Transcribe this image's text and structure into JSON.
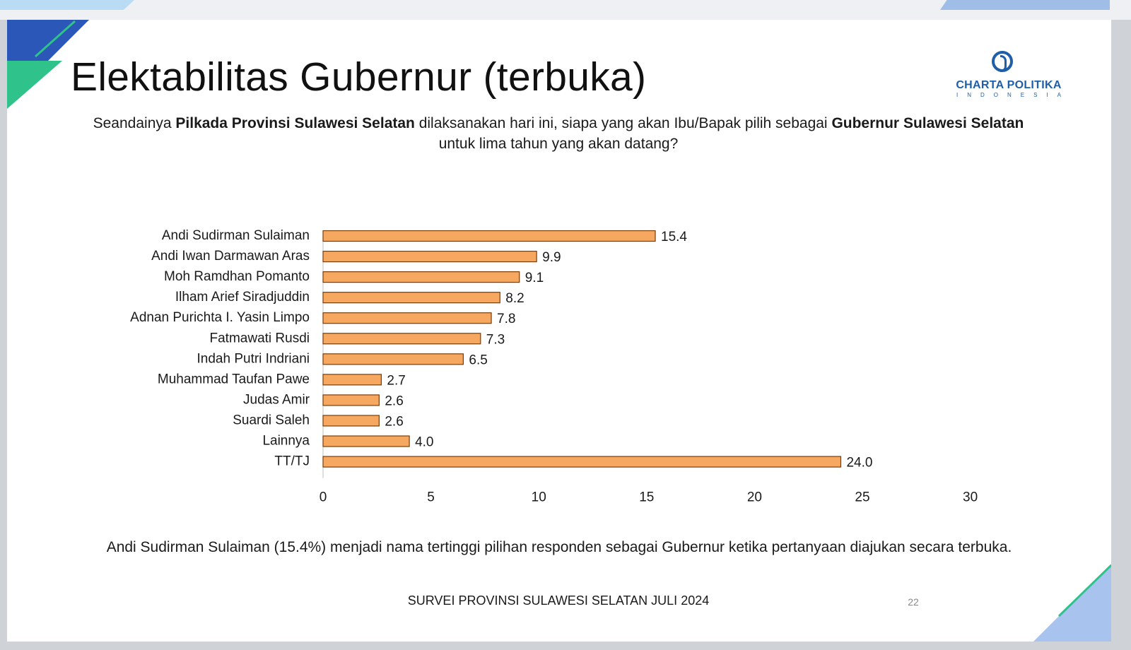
{
  "slide": {
    "title": "Elektabilitas Gubernur (terbuka)",
    "question_parts": [
      {
        "text": "Seandainya ",
        "bold": false
      },
      {
        "text": "Pilkada Provinsi Sulawesi Selatan",
        "bold": true
      },
      {
        "text": " dilaksanakan hari ini, siapa yang akan Ibu/Bapak pilih sebagai ",
        "bold": false
      },
      {
        "text": "Gubernur Sulawesi Selatan",
        "bold": true
      },
      {
        "text": " untuk lima tahun yang akan datang?",
        "bold": false
      }
    ],
    "summary": "Andi Sudirman Sulaiman (15.4%) menjadi nama tertinggi pilihan responden sebagai Gubernur ketika pertanyaan diajukan secara terbuka.",
    "footer": "SURVEI PROVINSI SULAWESI SELATAN JULI 2024",
    "page_number": "22"
  },
  "logo": {
    "name": "CHARTA POLITIKA",
    "sub": "INDONESIA",
    "icon": "charta-politika-logo-icon",
    "color": "#1f5ea8"
  },
  "colors": {
    "bar_fill": "#f6a860",
    "bar_edge": "#7a3d08",
    "accent_green": "#2fc28a",
    "accent_blue": "#2b57b8",
    "accent_lightblue": "#a9c3ef"
  },
  "chart_data": {
    "type": "bar",
    "orientation": "horizontal",
    "categories": [
      "Andi Sudirman Sulaiman",
      "Andi Iwan Darmawan Aras",
      "Moh Ramdhan Pomanto",
      "Ilham Arief Siradjuddin",
      "Adnan Purichta I. Yasin Limpo",
      "Fatmawati Rusdi",
      "Indah Putri Indriani",
      "Muhammad Taufan Pawe",
      "Judas Amir",
      "Suardi Saleh",
      "Lainnya",
      "TT/TJ"
    ],
    "values": [
      15.4,
      9.9,
      9.1,
      8.2,
      7.8,
      7.3,
      6.5,
      2.7,
      2.6,
      2.6,
      4.0,
      24.0
    ],
    "value_labels": [
      "15.4",
      "9.9",
      "9.1",
      "8.2",
      "7.8",
      "7.3",
      "6.5",
      "2.7",
      "2.6",
      "2.6",
      "4.0",
      "24.0"
    ],
    "xlim": [
      0,
      30
    ],
    "xticks": [
      0,
      5,
      10,
      15,
      20,
      25,
      30
    ],
    "xlabel": "",
    "ylabel": "",
    "grid": false,
    "legend": "none"
  }
}
